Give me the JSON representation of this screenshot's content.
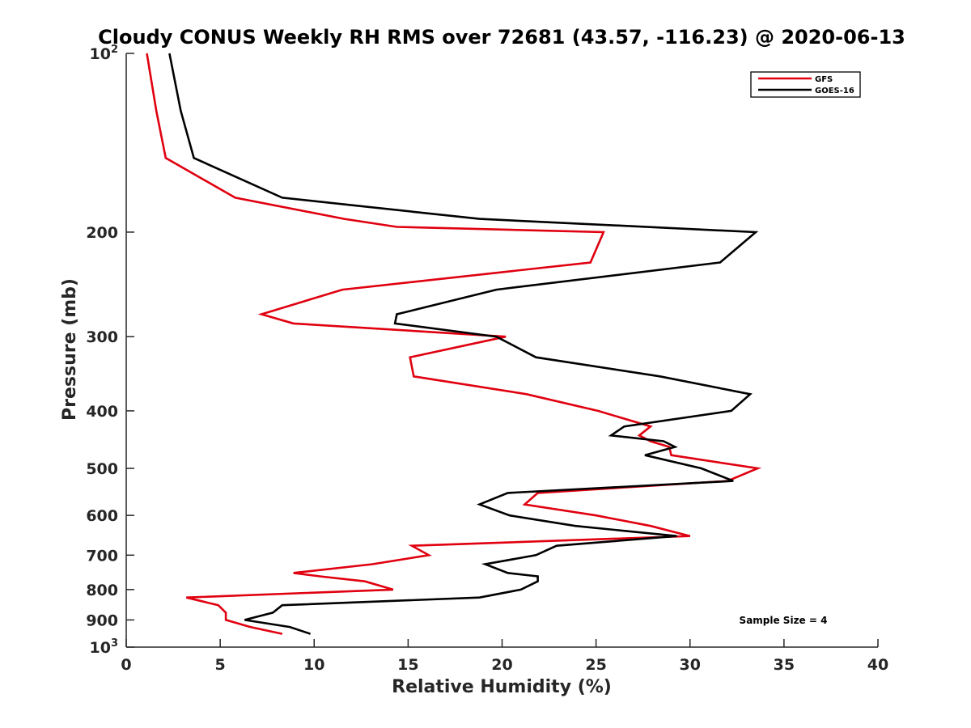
{
  "chart_data": {
    "type": "line",
    "title": "Cloudy CONUS Weekly RH RMS over 72681 (43.57, -116.23) @ 2020-06-13",
    "xlabel": "Relative Humidity (%)",
    "ylabel": "Pressure (mb)",
    "xlim": [
      0,
      40
    ],
    "ylim": [
      100,
      1000
    ],
    "yscale": "log",
    "y_reversed": true,
    "grid": false,
    "legend_position": "top-right",
    "x_ticks": [
      0,
      5,
      10,
      15,
      20,
      25,
      30,
      35,
      40
    ],
    "y_ticks": [
      100,
      200,
      300,
      400,
      500,
      600,
      700,
      800,
      900,
      1000
    ],
    "y_tick_labels": [
      {
        "value": 100,
        "base": "10",
        "exp": "2"
      },
      {
        "value": 200,
        "base": "200",
        "exp": ""
      },
      {
        "value": 300,
        "base": "300",
        "exp": ""
      },
      {
        "value": 400,
        "base": "400",
        "exp": ""
      },
      {
        "value": 500,
        "base": "500",
        "exp": ""
      },
      {
        "value": 600,
        "base": "600",
        "exp": ""
      },
      {
        "value": 700,
        "base": "700",
        "exp": ""
      },
      {
        "value": 800,
        "base": "800",
        "exp": ""
      },
      {
        "value": 900,
        "base": "900",
        "exp": ""
      },
      {
        "value": 1000,
        "base": "10",
        "exp": "3"
      }
    ],
    "annotation": "Sample Size = 4",
    "series": [
      {
        "name": "GFS",
        "color": "#e0000f",
        "points": [
          {
            "x": 1.1,
            "y": 100
          },
          {
            "x": 1.6,
            "y": 125
          },
          {
            "x": 2.1,
            "y": 150
          },
          {
            "x": 5.8,
            "y": 175
          },
          {
            "x": 11.6,
            "y": 190
          },
          {
            "x": 14.4,
            "y": 196
          },
          {
            "x": 25.4,
            "y": 200
          },
          {
            "x": 24.7,
            "y": 225
          },
          {
            "x": 11.5,
            "y": 250
          },
          {
            "x": 7.2,
            "y": 275
          },
          {
            "x": 8.9,
            "y": 285
          },
          {
            "x": 20.2,
            "y": 300
          },
          {
            "x": 15.1,
            "y": 325
          },
          {
            "x": 15.3,
            "y": 350
          },
          {
            "x": 21.3,
            "y": 375
          },
          {
            "x": 25.1,
            "y": 400
          },
          {
            "x": 27.9,
            "y": 425
          },
          {
            "x": 27.3,
            "y": 440
          },
          {
            "x": 27.9,
            "y": 450
          },
          {
            "x": 28.9,
            "y": 460
          },
          {
            "x": 29.0,
            "y": 475
          },
          {
            "x": 33.6,
            "y": 500
          },
          {
            "x": 32.0,
            "y": 525
          },
          {
            "x": 21.9,
            "y": 550
          },
          {
            "x": 21.2,
            "y": 575
          },
          {
            "x": 25.0,
            "y": 600
          },
          {
            "x": 27.9,
            "y": 625
          },
          {
            "x": 30.0,
            "y": 650
          },
          {
            "x": 15.2,
            "y": 675
          },
          {
            "x": 16.1,
            "y": 700
          },
          {
            "x": 13.1,
            "y": 725
          },
          {
            "x": 8.9,
            "y": 750
          },
          {
            "x": 10.3,
            "y": 760
          },
          {
            "x": 12.7,
            "y": 775
          },
          {
            "x": 14.2,
            "y": 800
          },
          {
            "x": 3.2,
            "y": 825
          },
          {
            "x": 4.9,
            "y": 850
          },
          {
            "x": 5.3,
            "y": 875
          },
          {
            "x": 5.3,
            "y": 900
          },
          {
            "x": 6.6,
            "y": 925
          },
          {
            "x": 8.3,
            "y": 950
          }
        ]
      },
      {
        "name": "GOES-16",
        "color": "#000000",
        "points": [
          {
            "x": 2.3,
            "y": 100
          },
          {
            "x": 2.9,
            "y": 125
          },
          {
            "x": 3.6,
            "y": 150
          },
          {
            "x": 8.3,
            "y": 175
          },
          {
            "x": 18.8,
            "y": 190
          },
          {
            "x": 33.5,
            "y": 200
          },
          {
            "x": 31.6,
            "y": 225
          },
          {
            "x": 19.7,
            "y": 250
          },
          {
            "x": 14.4,
            "y": 275
          },
          {
            "x": 14.3,
            "y": 285
          },
          {
            "x": 19.7,
            "y": 300
          },
          {
            "x": 21.8,
            "y": 325
          },
          {
            "x": 28.4,
            "y": 350
          },
          {
            "x": 33.2,
            "y": 375
          },
          {
            "x": 32.2,
            "y": 400
          },
          {
            "x": 26.5,
            "y": 425
          },
          {
            "x": 25.8,
            "y": 440
          },
          {
            "x": 28.6,
            "y": 450
          },
          {
            "x": 29.2,
            "y": 460
          },
          {
            "x": 27.6,
            "y": 475
          },
          {
            "x": 30.6,
            "y": 500
          },
          {
            "x": 32.3,
            "y": 525
          },
          {
            "x": 20.3,
            "y": 550
          },
          {
            "x": 18.8,
            "y": 575
          },
          {
            "x": 20.4,
            "y": 600
          },
          {
            "x": 23.9,
            "y": 625
          },
          {
            "x": 29.3,
            "y": 650
          },
          {
            "x": 22.9,
            "y": 675
          },
          {
            "x": 21.8,
            "y": 700
          },
          {
            "x": 19.1,
            "y": 725
          },
          {
            "x": 20.3,
            "y": 750
          },
          {
            "x": 21.9,
            "y": 760
          },
          {
            "x": 21.9,
            "y": 775
          },
          {
            "x": 21.0,
            "y": 800
          },
          {
            "x": 18.8,
            "y": 825
          },
          {
            "x": 8.3,
            "y": 850
          },
          {
            "x": 7.8,
            "y": 875
          },
          {
            "x": 6.3,
            "y": 900
          },
          {
            "x": 8.7,
            "y": 925
          },
          {
            "x": 9.8,
            "y": 950
          }
        ]
      }
    ]
  }
}
